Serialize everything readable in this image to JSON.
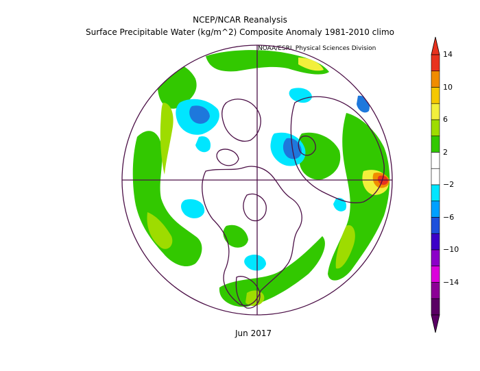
{
  "title": {
    "line1": "NCEP/NCAR Reanalysis",
    "line2": "Surface Precipitable Water (kg/m^2) Composite Anomaly 1981-2010 climo",
    "credit": "NOAA/ESRL Physical Sciences Division"
  },
  "date_label": "Jun 2017",
  "colorbar": {
    "ticks": [
      "14",
      "10",
      "6",
      "2",
      "−2",
      "−6",
      "−10",
      "−14"
    ],
    "colors_top_to_bottom": [
      "#e8321e",
      "#f08c00",
      "#f5c800",
      "#f2ef3c",
      "#9edc00",
      "#32c800",
      "#ffffff",
      "#ffffff",
      "#00e6ff",
      "#00a0ff",
      "#1e50dc",
      "#3c00c8",
      "#8c00c8",
      "#dc00dc",
      "#8c0096",
      "#5a0064"
    ]
  },
  "map": {
    "projection": "north-polar-stereographic",
    "colors": {
      "coast": "#4b0f46",
      "green": "#32c800",
      "lime": "#9edc00",
      "yellow": "#f2ef3c",
      "gold": "#f5c800",
      "orange": "#f08c00",
      "red": "#e8321e",
      "cyan": "#00e6ff",
      "blue": "#1e78dc",
      "darkblue": "#1e50dc"
    }
  }
}
